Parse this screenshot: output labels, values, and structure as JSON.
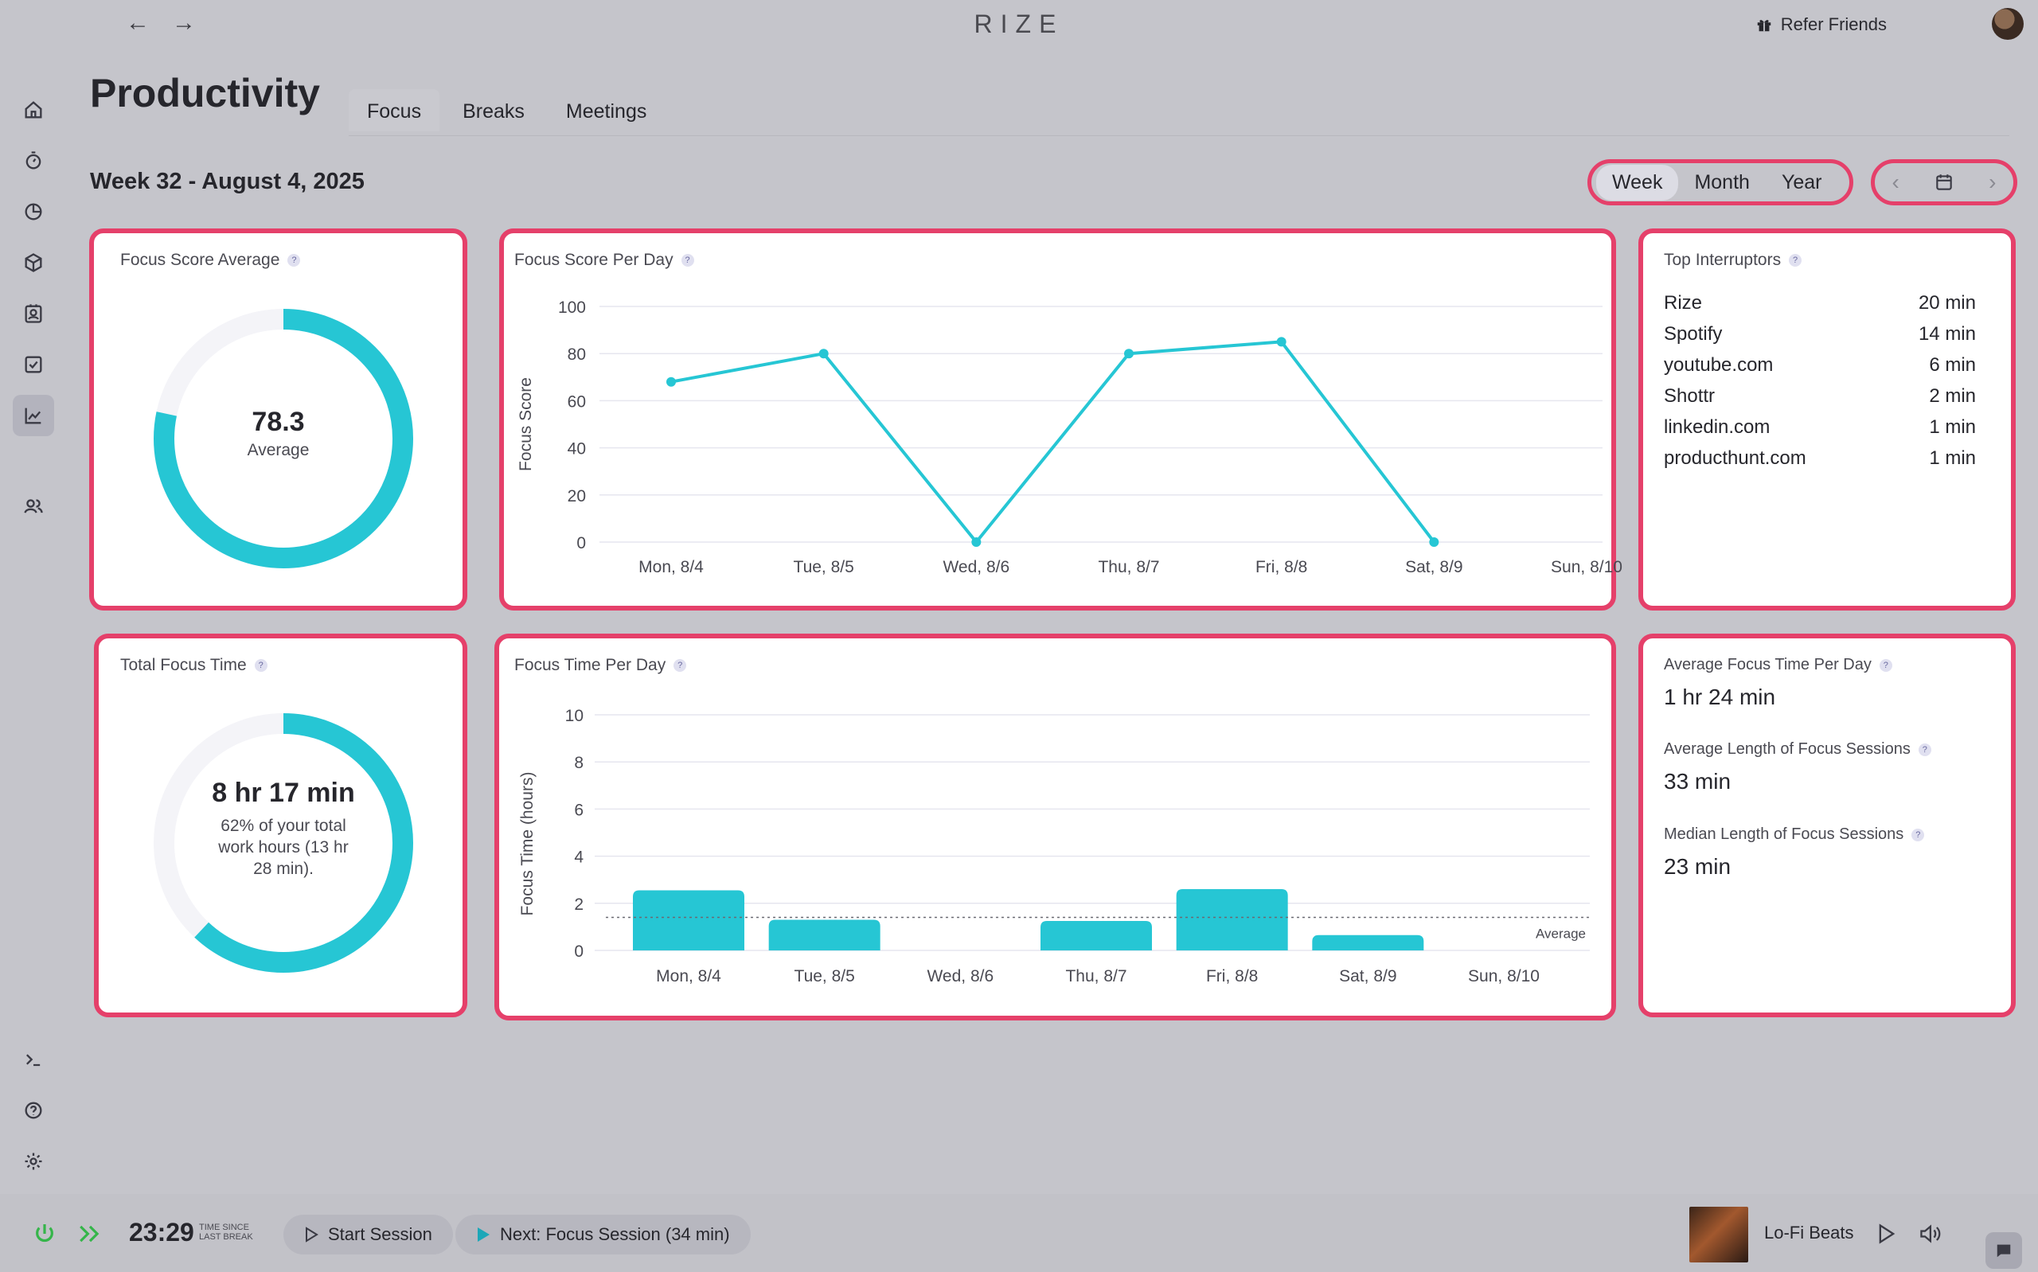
{
  "app": {
    "brand": "RIZE",
    "refer_label": "Refer Friends"
  },
  "header": {
    "title": "Productivity",
    "tabs": [
      {
        "label": "Focus",
        "active": true
      },
      {
        "label": "Breaks",
        "active": false
      },
      {
        "label": "Meetings",
        "active": false
      }
    ],
    "week_label": "Week 32 - August 4, 2025",
    "range_options": [
      {
        "label": "Week",
        "active": true
      },
      {
        "label": "Month",
        "active": false
      },
      {
        "label": "Year",
        "active": false
      }
    ]
  },
  "sidebar": {
    "items": [
      {
        "icon": "home-icon"
      },
      {
        "icon": "timer-icon"
      },
      {
        "icon": "pie-chart-icon"
      },
      {
        "icon": "cube-icon"
      },
      {
        "icon": "contact-icon"
      },
      {
        "icon": "checkbox-icon"
      },
      {
        "icon": "line-chart-icon",
        "active": true
      },
      {
        "icon": "users-icon"
      }
    ],
    "bottom": [
      {
        "icon": "terminal-icon"
      },
      {
        "icon": "help-icon"
      },
      {
        "icon": "settings-icon"
      }
    ]
  },
  "focus_score_avg": {
    "title": "Focus Score Average",
    "value": "78.3",
    "sub": "Average",
    "fraction": 0.783
  },
  "total_focus_time": {
    "title": "Total Focus Time",
    "value": "8 hr 17 min",
    "sub": "62% of your total work hours (13 hr 28 min).",
    "fraction": 0.62
  },
  "top_interruptors": {
    "title": "Top Interruptors",
    "items": [
      {
        "name": "Rize",
        "time": "20 min"
      },
      {
        "name": "Spotify",
        "time": "14 min"
      },
      {
        "name": "youtube.com",
        "time": "6 min"
      },
      {
        "name": "Shottr",
        "time": "2 min"
      },
      {
        "name": "linkedin.com",
        "time": "1 min"
      },
      {
        "name": "producthunt.com",
        "time": "1 min"
      }
    ]
  },
  "focus_stats": {
    "avg_per_day_label": "Average Focus Time Per Day",
    "avg_per_day_value": "1 hr 24 min",
    "avg_session_label": "Average Length of Focus Sessions",
    "avg_session_value": "33 min",
    "median_session_label": "Median Length of Focus Sessions",
    "median_session_value": "23 min"
  },
  "chart_data": [
    {
      "type": "line",
      "title": "Focus Score Per Day",
      "ylabel": "Focus Score",
      "xlabel": "",
      "categories": [
        "Mon, 8/4",
        "Tue, 8/5",
        "Wed, 8/6",
        "Thu, 8/7",
        "Fri, 8/8",
        "Sat, 8/9",
        "Sun, 8/10"
      ],
      "values": [
        68,
        80,
        0,
        80,
        85,
        0,
        null
      ],
      "yticks": [
        0,
        20,
        40,
        60,
        80,
        100
      ],
      "ylim": [
        0,
        100
      ],
      "grid": true,
      "color": "#26c6d4"
    },
    {
      "type": "bar",
      "title": "Focus Time Per Day",
      "ylabel": "Focus Time (hours)",
      "xlabel": "",
      "categories": [
        "Mon, 8/4",
        "Tue, 8/5",
        "Wed, 8/6",
        "Thu, 8/7",
        "Fri, 8/8",
        "Sat, 8/9",
        "Sun, 8/10"
      ],
      "values": [
        2.55,
        1.3,
        0,
        1.25,
        2.6,
        0.65,
        0
      ],
      "yticks": [
        0,
        2,
        4,
        6,
        8,
        10
      ],
      "ylim": [
        0,
        10
      ],
      "average": 1.4,
      "average_label": "Average",
      "grid": true,
      "color": "#26c6d4"
    }
  ],
  "bottom_bar": {
    "timer": "23:29",
    "timer_caption_1": "TIME SINCE",
    "timer_caption_2": "LAST BREAK",
    "start_label": "Start Session",
    "next_label": "Next: Focus Session (34 min)",
    "track": "Lo-Fi Beats"
  },
  "colors": {
    "accent": "#26c6d4",
    "highlight": "#e5406a",
    "power": "#35b54a"
  }
}
